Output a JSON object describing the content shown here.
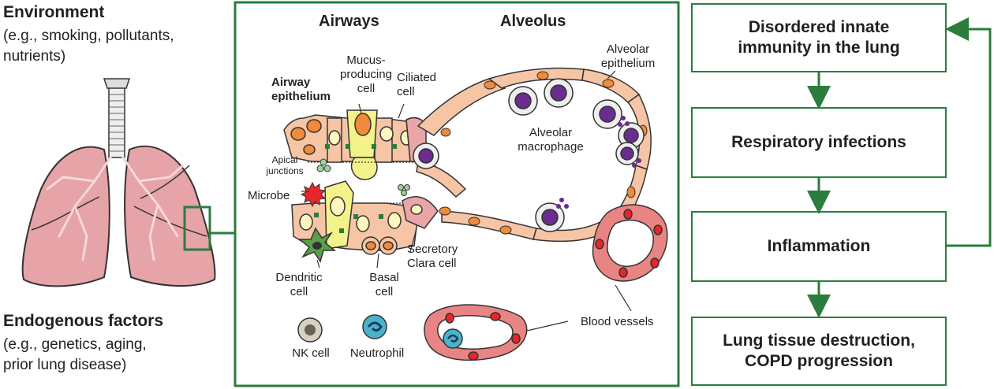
{
  "left": {
    "environment_title": "Environment",
    "environment_examples": [
      "(e.g., smoking, pollutants,",
      "nutrients)"
    ],
    "endogenous_title": "Endogenous factors",
    "endogenous_examples": [
      "(e.g., genetics, aging,",
      "prior lung disease)"
    ]
  },
  "center": {
    "airways_title": "Airways",
    "alveolus_title": "Alveolus",
    "labels": {
      "airway_epithelium": [
        "Airway",
        "epithelium"
      ],
      "mucus_cell": [
        "Mucus-",
        "producing",
        "cell"
      ],
      "ciliated_cell": [
        "Ciliated",
        "cell"
      ],
      "apical_junctions": [
        "Apical",
        "junctions"
      ],
      "microbe": "Microbe",
      "dendritic_cell": [
        "Dendritic",
        "cell"
      ],
      "basal_cell": [
        "Basal",
        "cell"
      ],
      "secretory_cell": [
        "Secretory",
        "Clara cell"
      ],
      "alveolar_epithelium": [
        "Alveolar",
        "epithelium"
      ],
      "alveolar_macrophage": [
        "Alveolar",
        "macrophage"
      ],
      "blood_vessels": "Blood vessels",
      "nk_cell": "NK cell",
      "neutrophil": "Neutrophil"
    }
  },
  "flow": {
    "steps": [
      [
        "Disordered innate",
        "immunity in the lung"
      ],
      [
        "Respiratory infections"
      ],
      [
        "Inflammation"
      ],
      [
        "Lung tissue destruction,",
        "COPD progression"
      ]
    ]
  },
  "colors": {
    "accent_green": "#2a7d3c",
    "cell_peach": "#f6c5a5",
    "nucleus_orange": "#f08a3c",
    "mucus_yellow": "#f4f28a",
    "lung_pink": "#e6a3a8",
    "macrophage_purple": "#6a2c8e",
    "vessel_red": "#e8252a",
    "neutrophil_teal": "#4ab3c9"
  }
}
